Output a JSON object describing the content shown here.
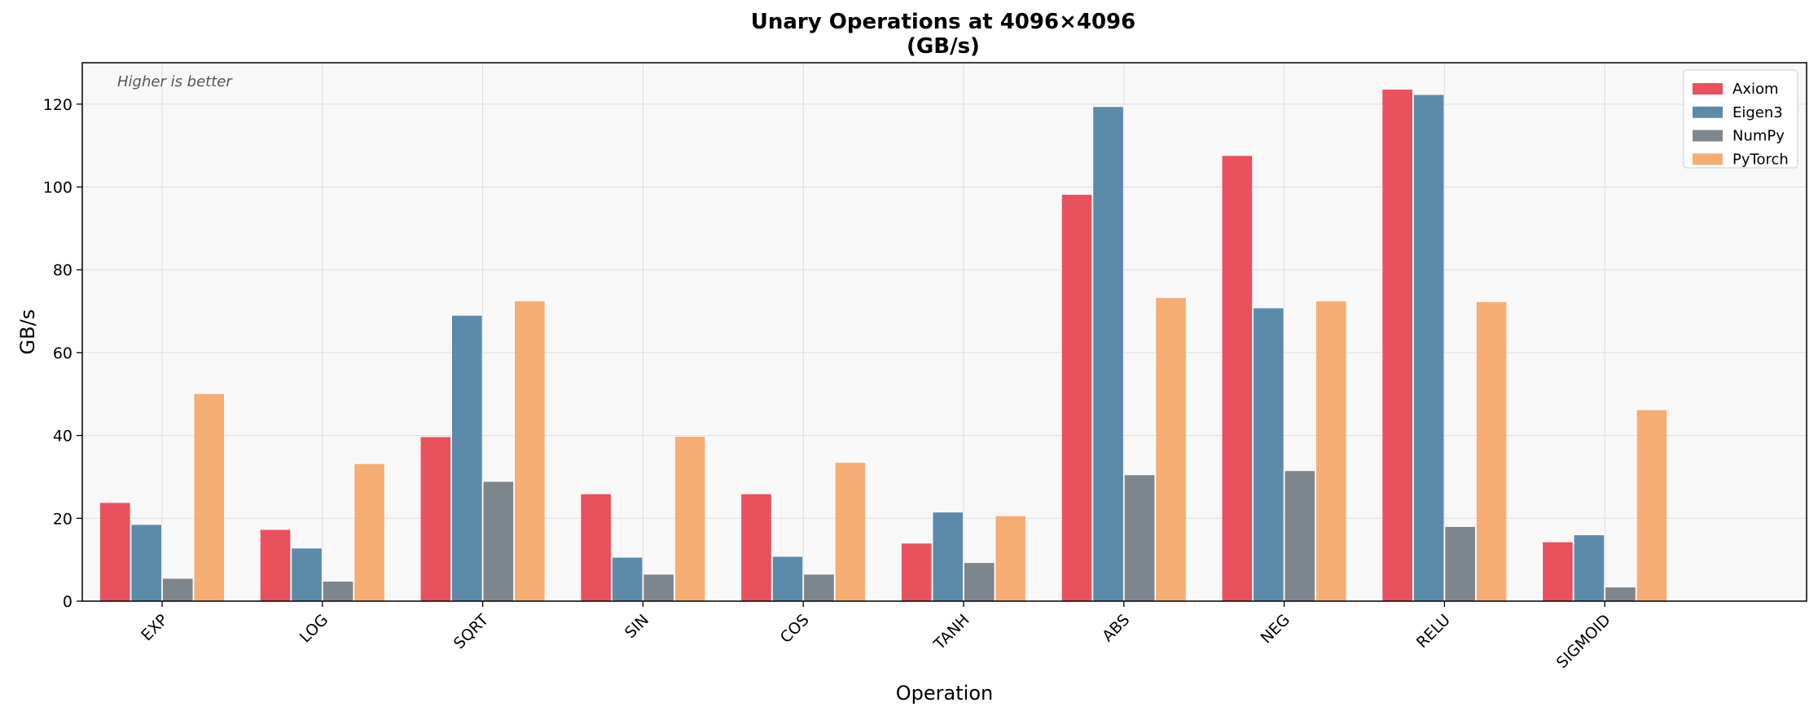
{
  "chart_data": {
    "type": "bar",
    "title": "Unary Operations at 4096×4096",
    "subtitle": "(GB/s)",
    "xlabel": "Operation",
    "ylabel": "GB/s",
    "annotation": "Higher is better",
    "categories": [
      "EXP",
      "LOG",
      "SQRT",
      "SIN",
      "COS",
      "TANH",
      "ABS",
      "NEG",
      "RELU",
      "SIGMOID"
    ],
    "series": [
      {
        "name": "Axiom",
        "color": "#E63946",
        "values": [
          23.8,
          17.3,
          39.7,
          25.9,
          25.9,
          14.0,
          98.2,
          107.6,
          123.6,
          14.3
        ]
      },
      {
        "name": "Eigen3",
        "color": "#457B9D",
        "values": [
          18.5,
          12.8,
          69.0,
          10.6,
          10.8,
          21.5,
          119.4,
          70.8,
          122.3,
          16.0
        ]
      },
      {
        "name": "NumPy",
        "color": "#6C757D",
        "values": [
          5.5,
          4.8,
          28.9,
          6.5,
          6.5,
          9.3,
          30.5,
          31.5,
          18.0,
          3.4
        ]
      },
      {
        "name": "PyTorch",
        "color": "#F4A261",
        "values": [
          50.1,
          33.2,
          72.5,
          39.8,
          33.5,
          20.6,
          73.3,
          72.5,
          72.3,
          46.2
        ]
      }
    ],
    "ylim": [
      0,
      130
    ],
    "yticks": [
      0,
      20,
      40,
      60,
      80,
      100,
      120
    ],
    "grid": true,
    "legend_position": "top-right"
  }
}
